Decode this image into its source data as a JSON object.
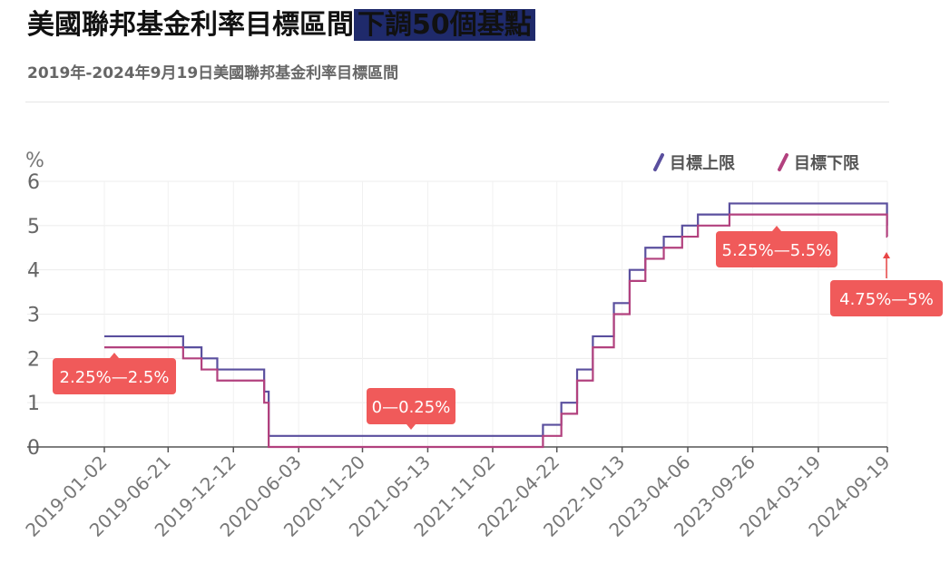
{
  "title": {
    "main": "美國聯邦基金利率目標區間",
    "highlight": "下調50個基點"
  },
  "subtitle": "2019年-2024年9月19日美國聯邦基金利率目標區間",
  "chart_data": {
    "type": "line",
    "step": true,
    "ylabel": "%",
    "ylim": [
      0,
      6
    ],
    "yticks": [
      "0",
      "1",
      "2",
      "3",
      "4",
      "5",
      "6"
    ],
    "xlim": [
      "2019-01-02",
      "2024-09-19"
    ],
    "xticks": [
      "2019-01-02",
      "2019-06-21",
      "2019-12-12",
      "2020-06-03",
      "2020-11-20",
      "2021-05-13",
      "2021-11-02",
      "2022-04-22",
      "2022-10-13",
      "2023-04-06",
      "2023-09-26",
      "2024-03-19",
      "2024-09-19"
    ],
    "grid": true,
    "legend_position": "top-right",
    "series": [
      {
        "name": "目標上限",
        "color": "#5a4f9e",
        "points": [
          [
            "2019-01-02",
            2.5
          ],
          [
            "2019-07-31",
            2.25
          ],
          [
            "2019-09-18",
            2.0
          ],
          [
            "2019-10-30",
            1.75
          ],
          [
            "2020-03-03",
            1.25
          ],
          [
            "2020-03-15",
            0.25
          ],
          [
            "2022-03-16",
            0.5
          ],
          [
            "2022-05-04",
            1.0
          ],
          [
            "2022-06-15",
            1.75
          ],
          [
            "2022-07-27",
            2.5
          ],
          [
            "2022-09-21",
            3.25
          ],
          [
            "2022-11-02",
            4.0
          ],
          [
            "2022-12-14",
            4.5
          ],
          [
            "2023-02-01",
            4.75
          ],
          [
            "2023-03-22",
            5.0
          ],
          [
            "2023-05-03",
            5.25
          ],
          [
            "2023-07-26",
            5.5
          ],
          [
            "2024-09-18",
            5.0
          ],
          [
            "2024-09-19",
            5.0
          ]
        ]
      },
      {
        "name": "目標下限",
        "color": "#b2417e",
        "points": [
          [
            "2019-01-02",
            2.25
          ],
          [
            "2019-07-31",
            2.0
          ],
          [
            "2019-09-18",
            1.75
          ],
          [
            "2019-10-30",
            1.5
          ],
          [
            "2020-03-03",
            1.0
          ],
          [
            "2020-03-15",
            0.0
          ],
          [
            "2022-03-16",
            0.25
          ],
          [
            "2022-05-04",
            0.75
          ],
          [
            "2022-06-15",
            1.5
          ],
          [
            "2022-07-27",
            2.25
          ],
          [
            "2022-09-21",
            3.0
          ],
          [
            "2022-11-02",
            3.75
          ],
          [
            "2022-12-14",
            4.25
          ],
          [
            "2023-02-01",
            4.5
          ],
          [
            "2023-03-22",
            4.75
          ],
          [
            "2023-05-03",
            5.0
          ],
          [
            "2023-07-26",
            5.25
          ],
          [
            "2024-09-18",
            4.75
          ],
          [
            "2024-09-19",
            4.75
          ]
        ]
      }
    ],
    "annotations": [
      {
        "text": "2.25%—2.5%",
        "date": "2019-04-15",
        "value": 2.3
      },
      {
        "text": "0—0.25%",
        "date": "2021-03-15",
        "value": 0.3
      },
      {
        "text": "5.25%—5.5%",
        "date": "2024-01-01",
        "value": 5.3
      },
      {
        "text": "4.75%—5%",
        "date": "2024-09-19",
        "value": 4.3
      }
    ],
    "annotation_color": "#f05a5a"
  }
}
